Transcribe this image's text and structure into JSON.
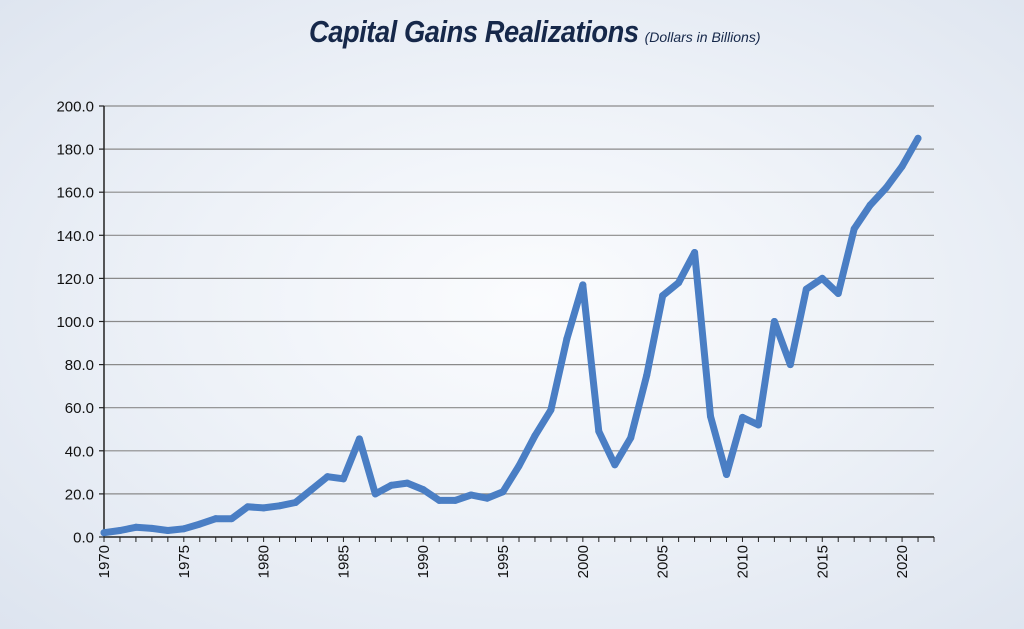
{
  "title": "Capital Gains Realizations",
  "subtitle": "(Dollars in Billions)",
  "chart_data": {
    "type": "line",
    "title": "Capital Gains Realizations",
    "subtitle": "(Dollars in Billions)",
    "xlabel": "",
    "ylabel": "",
    "xlim": [
      1970,
      2022
    ],
    "ylim": [
      0,
      200
    ],
    "y_ticks": [
      "0.0",
      "20.0",
      "40.0",
      "60.0",
      "80.0",
      "100.0",
      "120.0",
      "140.0",
      "160.0",
      "180.0",
      "200.0"
    ],
    "x_ticks": [
      "1970",
      "1975",
      "1980",
      "1985",
      "1990",
      "1995",
      "2000",
      "2005",
      "2010",
      "2015",
      "2020"
    ],
    "grid": true,
    "line_color": "#4a7ec4",
    "series": [
      {
        "name": "Capital Gains Realizations",
        "x": [
          1970,
          1971,
          1972,
          1973,
          1974,
          1975,
          1976,
          1977,
          1978,
          1979,
          1980,
          1981,
          1982,
          1983,
          1984,
          1985,
          1986,
          1987,
          1988,
          1989,
          1990,
          1991,
          1992,
          1993,
          1994,
          1995,
          1996,
          1997,
          1998,
          1999,
          2000,
          2001,
          2002,
          2003,
          2004,
          2005,
          2006,
          2007,
          2008,
          2009,
          2010,
          2011,
          2012,
          2013,
          2014,
          2015,
          2016,
          2017,
          2018,
          2019,
          2020,
          2021
        ],
        "values": [
          2,
          3,
          4.5,
          4,
          3,
          3.8,
          6,
          8.5,
          8.5,
          14,
          13.5,
          14.5,
          16,
          22,
          28,
          27,
          45.5,
          20,
          24,
          25,
          22,
          17,
          17,
          19.5,
          18,
          21,
          33,
          47,
          59,
          92,
          117,
          49,
          33.5,
          46,
          75,
          112,
          118,
          132,
          56,
          29,
          55.5,
          52,
          100,
          80,
          115,
          120,
          113,
          143,
          154,
          162,
          172,
          185
        ]
      }
    ]
  }
}
